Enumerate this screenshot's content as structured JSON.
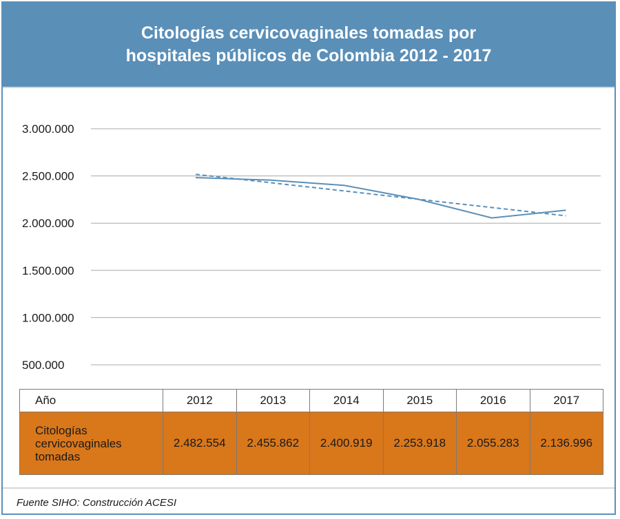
{
  "header": {
    "title_line1": "Citologías cervicovaginales tomadas por",
    "title_line2": "hospitales públicos de Colombia 2012 - 2017"
  },
  "chart_data": {
    "type": "line",
    "title": "Citologías cervicovaginales tomadas por hospitales públicos de Colombia 2012 - 2017",
    "categories": [
      "2012",
      "2013",
      "2014",
      "2015",
      "2016",
      "2017"
    ],
    "series": [
      {
        "name": "Citologías cervicovaginales tomadas",
        "values": [
          2482554,
          2455862,
          2400919,
          2253918,
          2055283,
          2136996
        ],
        "style": "solid",
        "color": "#5a8fb8"
      }
    ],
    "trendline": {
      "type": "linear",
      "style": "dashed",
      "color": "#5a8fb8"
    },
    "yticks": [
      "500.000",
      "1.000.000",
      "1.500.000",
      "2.000.000",
      "2.500.000",
      "3.000.000"
    ],
    "ylim": [
      500000,
      3000000
    ],
    "grid": true,
    "legend": "none"
  },
  "table": {
    "header_label": "Año",
    "years": [
      "2012",
      "2013",
      "2014",
      "2015",
      "2016",
      "2017"
    ],
    "row_label": "Citologías cervicovaginales tomadas",
    "row_label_lines": [
      "Citologías",
      "cervicovaginales",
      "tomadas"
    ],
    "values": [
      "2.482.554",
      "2.455.862",
      "2.400.919",
      "2.253.918",
      "2.055.283",
      "2.136.996"
    ]
  },
  "source": "Fuente SIHO: Construcción ACESI",
  "colors": {
    "accent": "#5a8fb8",
    "table_fill": "#d9771b"
  }
}
